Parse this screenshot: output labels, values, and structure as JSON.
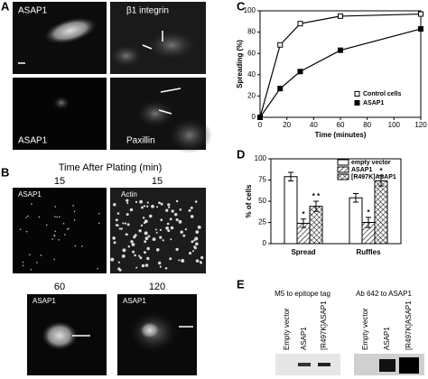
{
  "panel_labels": [
    "A",
    "B",
    "C",
    "D",
    "E"
  ],
  "panel_a": {
    "images": [
      "ASAP1",
      "β1 integrin",
      "ASAP1",
      "Paxillin"
    ]
  },
  "panel_b": {
    "title": "Time After Plating (min)",
    "times": [
      "15",
      "15",
      "60",
      "120"
    ],
    "images": [
      "ASAP1",
      "Actin",
      "ASAP1",
      "ASAP1"
    ]
  },
  "chart_data": [
    {
      "type": "line",
      "ylabel": "Spreading (%)",
      "xlabel": "Time (minutes)",
      "xlim": [
        0,
        120
      ],
      "ylim": [
        0,
        100
      ],
      "xticks": [
        0,
        20,
        40,
        60,
        80,
        100,
        120
      ],
      "yticks": [
        0,
        20,
        40,
        60,
        80,
        100
      ],
      "series": [
        {
          "name": "Control cells",
          "color": "#000000",
          "marker": "open",
          "x": [
            0,
            15,
            30,
            60,
            120
          ],
          "values": [
            0,
            68,
            88,
            95,
            97
          ]
        },
        {
          "name": "ASAP1",
          "color": "#000000",
          "marker": "filled",
          "x": [
            0,
            15,
            30,
            60,
            120
          ],
          "values": [
            0,
            27,
            43,
            63,
            83
          ]
        }
      ]
    },
    {
      "type": "bar",
      "ylabel": "% of cells",
      "categories": [
        "Spread",
        "Ruffles"
      ],
      "ylim": [
        0,
        100
      ],
      "yticks": [
        0,
        25,
        50,
        75,
        100
      ],
      "series": [
        {
          "name": "empty vector",
          "color": "#ffffff",
          "pattern": "none",
          "values": [
            79,
            54
          ],
          "errors": [
            5,
            5
          ],
          "annotations": [
            null,
            null
          ]
        },
        {
          "name": "ASAP1",
          "color": "#ffffff",
          "pattern": "diagonal",
          "values": [
            24,
            25
          ],
          "errors": [
            5,
            6
          ],
          "annotations": [
            "*",
            "*"
          ]
        },
        {
          "name": "[R497K]ASAP1",
          "color": "#ffffff",
          "pattern": "crosshatch",
          "values": [
            44,
            74
          ],
          "errors": [
            6,
            6
          ],
          "annotations": [
            "* *",
            "*"
          ]
        }
      ]
    }
  ],
  "panel_e": {
    "headings": [
      "M5 to epitope tag",
      "Ab 642 to ASAP1"
    ],
    "lanes": [
      "Empty vector",
      "ASAP1",
      "[R497K]ASAP1"
    ]
  }
}
